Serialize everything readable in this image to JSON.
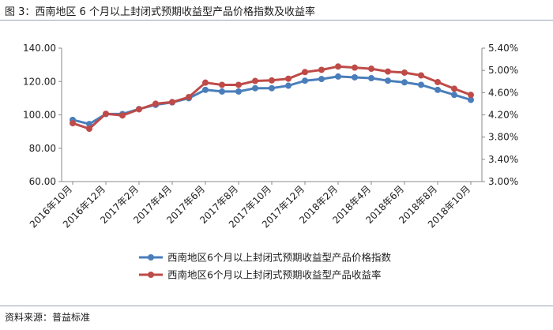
{
  "figure": {
    "title": "图 3：西南地区 6 个月以上封闭式预期收益型产品价格指数及收益率",
    "source": "资料来源：普益标准"
  },
  "colors": {
    "series1": "#4a7ebb",
    "series2": "#be4b48",
    "rule": "#9aa3b5",
    "axis": "#888888"
  },
  "chart_data": {
    "type": "line",
    "x": [
      "2016年10月",
      "2016年11月",
      "2016年12月",
      "2017年1月",
      "2017年2月",
      "2017年3月",
      "2017年4月",
      "2017年5月",
      "2017年6月",
      "2017年7月",
      "2017年8月",
      "2017年9月",
      "2017年10月",
      "2017年11月",
      "2017年12月",
      "2018年1月",
      "2018年2月",
      "2018年3月",
      "2018年4月",
      "2018年5月",
      "2018年6月",
      "2018年7月",
      "2018年8月",
      "2018年9月",
      "2018年10月"
    ],
    "x_tick_labels": [
      "2016年10月",
      "2016年12月",
      "2017年2月",
      "2017年4月",
      "2017年6月",
      "2017年8月",
      "2017年10月",
      "2017年12月",
      "2018年2月",
      "2018年4月",
      "2018年6月",
      "2018年8月",
      "2018年10月"
    ],
    "y_left": {
      "ylim": [
        60,
        140
      ],
      "ticks": [
        "60.00",
        "80.00",
        "100.00",
        "120.00",
        "140.00"
      ]
    },
    "y_right": {
      "ylim": [
        3.0,
        5.4
      ],
      "ticks": [
        "3.00%",
        "3.40%",
        "3.80%",
        "4.20%",
        "4.60%",
        "5.00%",
        "5.40%"
      ]
    },
    "series": [
      {
        "name": "西南地区6个月以上封闭式预期收益型产品价格指数",
        "axis": "left",
        "values": [
          97.0,
          94.5,
          100.5,
          100.5,
          103.5,
          106.0,
          107.5,
          110.0,
          115.0,
          114.0,
          114.0,
          116.0,
          116.0,
          117.5,
          120.5,
          121.5,
          123.0,
          122.5,
          122.0,
          120.5,
          119.5,
          118.0,
          115.0,
          112.0,
          109.0
        ]
      },
      {
        "name": "西南地区6个月以上封闭式预期收益型产品收益率",
        "axis": "right",
        "values": [
          4.05,
          3.95,
          4.22,
          4.19,
          4.3,
          4.4,
          4.43,
          4.52,
          4.78,
          4.74,
          4.74,
          4.81,
          4.82,
          4.85,
          4.97,
          5.01,
          5.07,
          5.05,
          5.03,
          4.98,
          4.96,
          4.91,
          4.79,
          4.67,
          4.56
        ]
      }
    ],
    "grid": false,
    "legend_position": "bottom-center"
  }
}
